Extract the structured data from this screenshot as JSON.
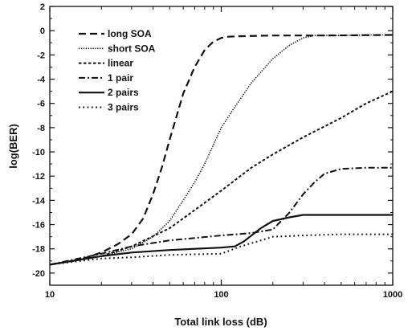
{
  "chart_data": {
    "type": "line",
    "xlabel": "Total link loss (dB)",
    "ylabel": "log(BER)",
    "xscale": "log",
    "xlim": [
      10,
      1000
    ],
    "ylim": [
      -21,
      2
    ],
    "xticks": [
      10,
      100,
      1000
    ],
    "xtick_labels": [
      "10",
      "100",
      "1000"
    ],
    "yticks": [
      2,
      0,
      -2,
      -4,
      -6,
      -8,
      -10,
      -12,
      -14,
      -16,
      -18,
      -20
    ],
    "ytick_labels": [
      "2",
      "0",
      "-2",
      "-4",
      "-6",
      "-8",
      "-10",
      "-12",
      "-14",
      "-16",
      "-18",
      "-20"
    ],
    "grid": false,
    "legend": "top-left",
    "series": [
      {
        "name": "long SOA",
        "style": "dashed",
        "points": [
          [
            10,
            -19.3
          ],
          [
            15,
            -18.9
          ],
          [
            20,
            -18.3
          ],
          [
            25,
            -17.6
          ],
          [
            30,
            -16.8
          ],
          [
            35,
            -15.5
          ],
          [
            40,
            -13.5
          ],
          [
            45,
            -11.3
          ],
          [
            50,
            -9
          ],
          [
            55,
            -7
          ],
          [
            60,
            -5.2
          ],
          [
            70,
            -3
          ],
          [
            80,
            -1.6
          ],
          [
            90,
            -0.9
          ],
          [
            100,
            -0.6
          ],
          [
            110,
            -0.5
          ],
          [
            130,
            -0.45
          ],
          [
            200,
            -0.4
          ],
          [
            400,
            -0.4
          ],
          [
            1000,
            -0.35
          ]
        ]
      },
      {
        "name": "short SOA",
        "style": "dotted-fine",
        "points": [
          [
            10,
            -19.3
          ],
          [
            20,
            -18.6
          ],
          [
            30,
            -18
          ],
          [
            40,
            -17
          ],
          [
            50,
            -15.7
          ],
          [
            60,
            -14
          ],
          [
            70,
            -12.5
          ],
          [
            80,
            -11
          ],
          [
            100,
            -8
          ],
          [
            120,
            -6.3
          ],
          [
            150,
            -4.3
          ],
          [
            200,
            -2.3
          ],
          [
            250,
            -1.2
          ],
          [
            300,
            -0.6
          ],
          [
            350,
            -0.4
          ],
          [
            500,
            -0.4
          ],
          [
            700,
            -0.35
          ],
          [
            1000,
            -0.35
          ]
        ]
      },
      {
        "name": "linear",
        "style": "short-dash",
        "points": [
          [
            10,
            -19.3
          ],
          [
            20,
            -18.6
          ],
          [
            30,
            -17.8
          ],
          [
            50,
            -16.3
          ],
          [
            70,
            -14.8
          ],
          [
            100,
            -13.2
          ],
          [
            150,
            -11.3
          ],
          [
            200,
            -10.2
          ],
          [
            300,
            -8.8
          ],
          [
            500,
            -7.2
          ],
          [
            700,
            -6
          ],
          [
            1000,
            -5
          ]
        ]
      },
      {
        "name": "1 pair",
        "style": "dash-dot",
        "points": [
          [
            10,
            -19.3
          ],
          [
            20,
            -18.4
          ],
          [
            30,
            -17.8
          ],
          [
            50,
            -17.3
          ],
          [
            100,
            -16.9
          ],
          [
            150,
            -16.7
          ],
          [
            200,
            -16.4
          ],
          [
            250,
            -15
          ],
          [
            300,
            -13.5
          ],
          [
            350,
            -12.5
          ],
          [
            400,
            -11.8
          ],
          [
            500,
            -11.4
          ],
          [
            700,
            -11.3
          ],
          [
            1000,
            -11.3
          ]
        ]
      },
      {
        "name": "2 pairs",
        "style": "solid",
        "points": [
          [
            10,
            -19.3
          ],
          [
            20,
            -18.6
          ],
          [
            30,
            -18.3
          ],
          [
            50,
            -18.1
          ],
          [
            100,
            -17.9
          ],
          [
            120,
            -17.8
          ],
          [
            135,
            -17.4
          ],
          [
            150,
            -16.9
          ],
          [
            170,
            -16.3
          ],
          [
            200,
            -15.7
          ],
          [
            250,
            -15.4
          ],
          [
            300,
            -15.2
          ],
          [
            500,
            -15.2
          ],
          [
            1000,
            -15.2
          ]
        ]
      },
      {
        "name": "3 pairs",
        "style": "dotted",
        "points": [
          [
            10,
            -19.3
          ],
          [
            20,
            -18.8
          ],
          [
            30,
            -18.7
          ],
          [
            50,
            -18.5
          ],
          [
            100,
            -18.4
          ],
          [
            130,
            -17.8
          ],
          [
            200,
            -17
          ],
          [
            300,
            -16.9
          ],
          [
            500,
            -16.8
          ],
          [
            1000,
            -16.8
          ]
        ]
      }
    ]
  }
}
